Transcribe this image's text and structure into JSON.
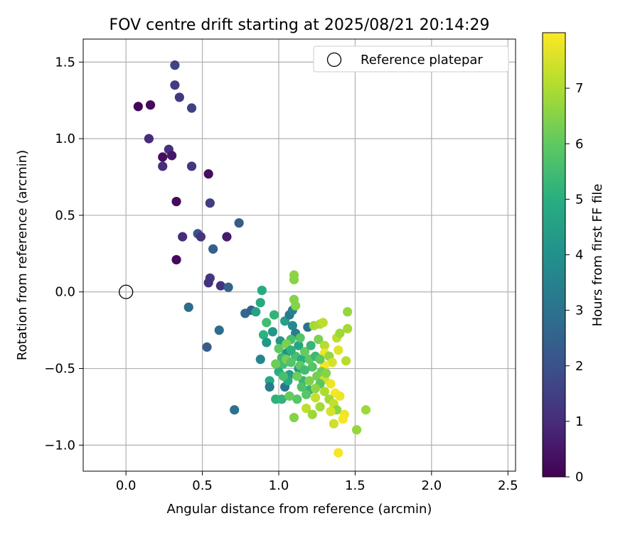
{
  "chart_data": {
    "type": "scatter",
    "title": "FOV centre drift starting at 2025/08/21 20:14:29",
    "xlabel": "Angular distance from reference (arcmin)",
    "ylabel": "Rotation from reference (arcmin)",
    "xlim": [
      -0.28,
      2.55
    ],
    "ylim": [
      -1.17,
      1.65
    ],
    "xticks": [
      0.0,
      0.5,
      1.0,
      1.5,
      2.0,
      2.5
    ],
    "xtick_labels": [
      "0.0",
      "0.5",
      "1.0",
      "1.5",
      "2.0",
      "2.5"
    ],
    "yticks": [
      -1.0,
      -0.5,
      0.0,
      0.5,
      1.0,
      1.5
    ],
    "ytick_labels": [
      "−1.0",
      "−0.5",
      "0.0",
      "0.5",
      "1.0",
      "1.5"
    ],
    "grid": true,
    "legend": {
      "position": "top-right",
      "entries": [
        "Reference platepar"
      ]
    },
    "reference_point": {
      "x": 0.0,
      "y": 0.0,
      "marker": "open-circle"
    },
    "colorbar": {
      "label": "Hours from first FF file",
      "colormap": "viridis",
      "range": [
        0,
        8.0
      ],
      "ticks": [
        0,
        1,
        2,
        3,
        4,
        5,
        6,
        7
      ],
      "tick_labels": [
        "0",
        "1",
        "2",
        "3",
        "4",
        "5",
        "6",
        "7"
      ]
    },
    "points": [
      {
        "x": 0.08,
        "y": 1.21,
        "c": 0.1
      },
      {
        "x": 0.16,
        "y": 1.22,
        "c": 0.2
      },
      {
        "x": 0.15,
        "y": 1.0,
        "c": 1.0
      },
      {
        "x": 0.32,
        "y": 1.48,
        "c": 1.6
      },
      {
        "x": 0.32,
        "y": 1.35,
        "c": 1.4
      },
      {
        "x": 0.35,
        "y": 1.27,
        "c": 1.3
      },
      {
        "x": 0.43,
        "y": 1.2,
        "c": 1.5
      },
      {
        "x": 0.28,
        "y": 0.93,
        "c": 1.1
      },
      {
        "x": 0.24,
        "y": 0.88,
        "c": 0.3
      },
      {
        "x": 0.3,
        "y": 0.89,
        "c": 0.5
      },
      {
        "x": 0.24,
        "y": 0.82,
        "c": 1.0
      },
      {
        "x": 0.43,
        "y": 0.82,
        "c": 1.3
      },
      {
        "x": 0.54,
        "y": 0.77,
        "c": 0.3
      },
      {
        "x": 0.33,
        "y": 0.59,
        "c": 0.2
      },
      {
        "x": 0.55,
        "y": 0.58,
        "c": 1.4
      },
      {
        "x": 0.74,
        "y": 0.45,
        "c": 2.3
      },
      {
        "x": 0.37,
        "y": 0.36,
        "c": 1.0
      },
      {
        "x": 0.47,
        "y": 0.38,
        "c": 2.1
      },
      {
        "x": 0.49,
        "y": 0.36,
        "c": 1.2
      },
      {
        "x": 0.66,
        "y": 0.36,
        "c": 0.6
      },
      {
        "x": 0.57,
        "y": 0.28,
        "c": 2.4
      },
      {
        "x": 0.33,
        "y": 0.21,
        "c": 0.2
      },
      {
        "x": 0.55,
        "y": 0.09,
        "c": 1.3
      },
      {
        "x": 0.54,
        "y": 0.06,
        "c": 1.1
      },
      {
        "x": 0.62,
        "y": 0.04,
        "c": 1.1
      },
      {
        "x": 0.67,
        "y": 0.03,
        "c": 2.5
      },
      {
        "x": 0.41,
        "y": -0.1,
        "c": 2.8
      },
      {
        "x": 0.78,
        "y": -0.14,
        "c": 2.7
      },
      {
        "x": 0.82,
        "y": -0.12,
        "c": 2.4
      },
      {
        "x": 0.85,
        "y": -0.13,
        "c": 4.6
      },
      {
        "x": 0.61,
        "y": -0.25,
        "c": 2.8
      },
      {
        "x": 0.53,
        "y": -0.36,
        "c": 2.3
      },
      {
        "x": 0.71,
        "y": -0.77,
        "c": 3.0
      },
      {
        "x": 0.89,
        "y": 0.01,
        "c": 4.9
      },
      {
        "x": 0.88,
        "y": -0.07,
        "c": 4.8
      },
      {
        "x": 0.97,
        "y": -0.15,
        "c": 5.2
      },
      {
        "x": 0.92,
        "y": -0.2,
        "c": 5.5
      },
      {
        "x": 0.96,
        "y": -0.26,
        "c": 4.2
      },
      {
        "x": 0.9,
        "y": -0.28,
        "c": 5.1
      },
      {
        "x": 0.92,
        "y": -0.33,
        "c": 4.2
      },
      {
        "x": 0.88,
        "y": -0.44,
        "c": 3.6
      },
      {
        "x": 0.94,
        "y": -0.58,
        "c": 4.8
      },
      {
        "x": 0.94,
        "y": -0.62,
        "c": 3.2
      },
      {
        "x": 0.98,
        "y": -0.7,
        "c": 5.1
      },
      {
        "x": 1.02,
        "y": -0.7,
        "c": 5.2
      },
      {
        "x": 1.04,
        "y": -0.62,
        "c": 3.1
      },
      {
        "x": 1.0,
        "y": -0.52,
        "c": 5.0
      },
      {
        "x": 1.03,
        "y": -0.47,
        "c": 5.5
      },
      {
        "x": 1.05,
        "y": -0.4,
        "c": 4.0
      },
      {
        "x": 1.01,
        "y": -0.32,
        "c": 4.2
      },
      {
        "x": 1.04,
        "y": -0.19,
        "c": 4.5
      },
      {
        "x": 1.07,
        "y": -0.15,
        "c": 3.2
      },
      {
        "x": 1.09,
        "y": -0.12,
        "c": 3.5
      },
      {
        "x": 1.09,
        "y": -0.22,
        "c": 3.8
      },
      {
        "x": 1.11,
        "y": -0.27,
        "c": 3.4
      },
      {
        "x": 1.08,
        "y": -0.31,
        "c": 5.6
      },
      {
        "x": 1.13,
        "y": -0.35,
        "c": 4.7
      },
      {
        "x": 1.1,
        "y": -0.05,
        "c": 6.5
      },
      {
        "x": 1.1,
        "y": 0.08,
        "c": 6.5
      },
      {
        "x": 1.1,
        "y": 0.11,
        "c": 6.6
      },
      {
        "x": 1.11,
        "y": -0.09,
        "c": 6.5
      },
      {
        "x": 1.11,
        "y": -0.42,
        "c": 5.6
      },
      {
        "x": 1.15,
        "y": -0.44,
        "c": 5.0
      },
      {
        "x": 1.13,
        "y": -0.5,
        "c": 4.3
      },
      {
        "x": 1.07,
        "y": -0.54,
        "c": 4.4
      },
      {
        "x": 1.16,
        "y": -0.58,
        "c": 5.3
      },
      {
        "x": 1.2,
        "y": -0.64,
        "c": 5.2
      },
      {
        "x": 1.12,
        "y": -0.7,
        "c": 5.9
      },
      {
        "x": 1.1,
        "y": -0.82,
        "c": 6.5
      },
      {
        "x": 1.07,
        "y": -0.68,
        "c": 6.1
      },
      {
        "x": 1.18,
        "y": -0.76,
        "c": 7.2
      },
      {
        "x": 1.22,
        "y": -0.8,
        "c": 6.8
      },
      {
        "x": 1.27,
        "y": -0.75,
        "c": 6.9
      },
      {
        "x": 1.19,
        "y": -0.23,
        "c": 3.0
      },
      {
        "x": 1.23,
        "y": -0.22,
        "c": 6.9
      },
      {
        "x": 1.27,
        "y": -0.21,
        "c": 7.0
      },
      {
        "x": 1.29,
        "y": -0.2,
        "c": 7.2
      },
      {
        "x": 1.26,
        "y": -0.31,
        "c": 6.4
      },
      {
        "x": 1.3,
        "y": -0.35,
        "c": 7.1
      },
      {
        "x": 1.3,
        "y": -0.4,
        "c": 7.8
      },
      {
        "x": 1.33,
        "y": -0.42,
        "c": 6.7
      },
      {
        "x": 1.35,
        "y": -0.46,
        "c": 7.5
      },
      {
        "x": 1.3,
        "y": -0.48,
        "c": 7.9
      },
      {
        "x": 1.28,
        "y": -0.52,
        "c": 6.2
      },
      {
        "x": 1.22,
        "y": -0.49,
        "c": 5.8
      },
      {
        "x": 1.2,
        "y": -0.44,
        "c": 6.0
      },
      {
        "x": 1.25,
        "y": -0.55,
        "c": 6.3
      },
      {
        "x": 1.3,
        "y": -0.57,
        "c": 7.4
      },
      {
        "x": 1.34,
        "y": -0.6,
        "c": 7.8
      },
      {
        "x": 1.27,
        "y": -0.6,
        "c": 5.9
      },
      {
        "x": 1.24,
        "y": -0.63,
        "c": 6.6
      },
      {
        "x": 1.3,
        "y": -0.65,
        "c": 7.0
      },
      {
        "x": 1.37,
        "y": -0.66,
        "c": 7.9
      },
      {
        "x": 1.4,
        "y": -0.68,
        "c": 7.8
      },
      {
        "x": 1.33,
        "y": -0.7,
        "c": 6.9
      },
      {
        "x": 1.24,
        "y": -0.69,
        "c": 7.3
      },
      {
        "x": 1.36,
        "y": -0.73,
        "c": 7.3
      },
      {
        "x": 1.38,
        "y": -0.77,
        "c": 6.6
      },
      {
        "x": 1.34,
        "y": -0.78,
        "c": 7.5
      },
      {
        "x": 1.43,
        "y": -0.8,
        "c": 7.8
      },
      {
        "x": 1.42,
        "y": -0.83,
        "c": 7.9
      },
      {
        "x": 1.36,
        "y": -0.86,
        "c": 7.4
      },
      {
        "x": 1.51,
        "y": -0.9,
        "c": 6.7
      },
      {
        "x": 1.57,
        "y": -0.77,
        "c": 6.8
      },
      {
        "x": 1.39,
        "y": -1.05,
        "c": 7.9
      },
      {
        "x": 1.44,
        "y": -0.45,
        "c": 7.1
      },
      {
        "x": 1.39,
        "y": -0.38,
        "c": 7.6
      },
      {
        "x": 1.38,
        "y": -0.3,
        "c": 7.2
      },
      {
        "x": 1.4,
        "y": -0.27,
        "c": 6.8
      },
      {
        "x": 1.45,
        "y": -0.24,
        "c": 6.9
      },
      {
        "x": 1.45,
        "y": -0.13,
        "c": 6.7
      },
      {
        "x": 1.02,
        "y": -0.43,
        "c": 5.4
      },
      {
        "x": 1.05,
        "y": -0.44,
        "c": 6.3
      },
      {
        "x": 1.08,
        "y": -0.46,
        "c": 5.8
      },
      {
        "x": 1.14,
        "y": -0.48,
        "c": 6.0
      },
      {
        "x": 1.17,
        "y": -0.51,
        "c": 5.5
      },
      {
        "x": 1.12,
        "y": -0.55,
        "c": 6.2
      },
      {
        "x": 1.06,
        "y": -0.58,
        "c": 4.9
      },
      {
        "x": 1.15,
        "y": -0.62,
        "c": 5.7
      },
      {
        "x": 1.2,
        "y": -0.58,
        "c": 6.4
      },
      {
        "x": 1.24,
        "y": -0.42,
        "c": 5.4
      },
      {
        "x": 1.17,
        "y": -0.39,
        "c": 6.1
      },
      {
        "x": 1.21,
        "y": -0.35,
        "c": 5.3
      },
      {
        "x": 1.14,
        "y": -0.3,
        "c": 5.8
      },
      {
        "x": 1.0,
        "y": -0.37,
        "c": 6.0
      },
      {
        "x": 0.98,
        "y": -0.47,
        "c": 6.2
      },
      {
        "x": 1.03,
        "y": -0.55,
        "c": 5.6
      },
      {
        "x": 1.05,
        "y": -0.34,
        "c": 6.4
      },
      {
        "x": 1.08,
        "y": -0.38,
        "c": 5.1
      },
      {
        "x": 1.27,
        "y": -0.44,
        "c": 6.0
      },
      {
        "x": 1.31,
        "y": -0.53,
        "c": 6.5
      },
      {
        "x": 1.18,
        "y": -0.67,
        "c": 5.9
      }
    ]
  }
}
